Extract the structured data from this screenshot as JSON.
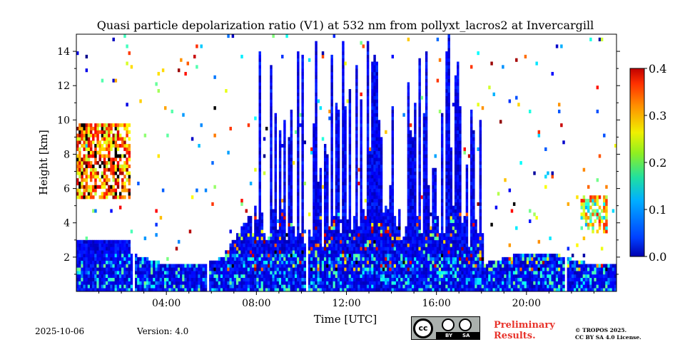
{
  "chart_data": {
    "type": "heatmap",
    "title": "Quasi particle depolarization ratio (V1) at 532 nm from pollyxt_lacros2 at Invercargill",
    "xlabel": "Time [UTC]",
    "ylabel": "Height [km]",
    "xlim_hours": [
      0,
      24
    ],
    "ylim": [
      0,
      15
    ],
    "x_ticks": [
      "04:00",
      "08:00",
      "12:00",
      "16:00",
      "20:00"
    ],
    "x_tick_hours": [
      4,
      8,
      12,
      16,
      20
    ],
    "y_ticks": [
      "2",
      "4",
      "6",
      "8",
      "10",
      "12",
      "14"
    ],
    "y_tick_values": [
      2,
      4,
      6,
      8,
      10,
      12,
      14
    ],
    "colorbar": {
      "min": 0.0,
      "max": 0.4,
      "tick_labels": [
        "0.0",
        "0.1",
        "0.2",
        "0.3",
        "0.4"
      ],
      "tick_values": [
        0.0,
        0.1,
        0.2,
        0.3,
        0.4
      ],
      "colormap": "jet"
    },
    "features": [
      {
        "name": "boundary layer low values",
        "start_h": 0.0,
        "end_h": 24.0,
        "bottom_km": 0.0,
        "top_km": 2.0,
        "value": 0.03
      },
      {
        "name": "elevated aerosol/cloud layer high depol",
        "start_h": 0.0,
        "end_h": 2.4,
        "bottom_km": 5.5,
        "top_km": 9.5,
        "value": 0.33
      },
      {
        "name": "dense cloud columns",
        "start_h": 7.8,
        "end_h": 18.0,
        "bottom_km": 0.0,
        "top_km": 15.0,
        "value": 0.02
      },
      {
        "name": "evening elevated layer",
        "start_h": 22.3,
        "end_h": 23.5,
        "bottom_km": 3.5,
        "top_km": 5.5,
        "value": 0.25
      }
    ],
    "data_gaps_hours": [
      2.5,
      5.8,
      10.2,
      21.7
    ]
  },
  "footer": {
    "date": "2025-10-06",
    "version": "Version: 4.0",
    "license_badge": {
      "left": "cc",
      "by": "BY",
      "sa": "SA"
    },
    "prelim_line1": "Preliminary",
    "prelim_line2": "Results.",
    "copyright_line1": "© TROPOS 2025.",
    "copyright_line2": "CC BY SA 4.0 License."
  },
  "colors": {
    "nan": "#ffffff",
    "high_depol_black": "#000000",
    "prelim": "#e8342c",
    "badge_bg": "#aab0ad"
  }
}
